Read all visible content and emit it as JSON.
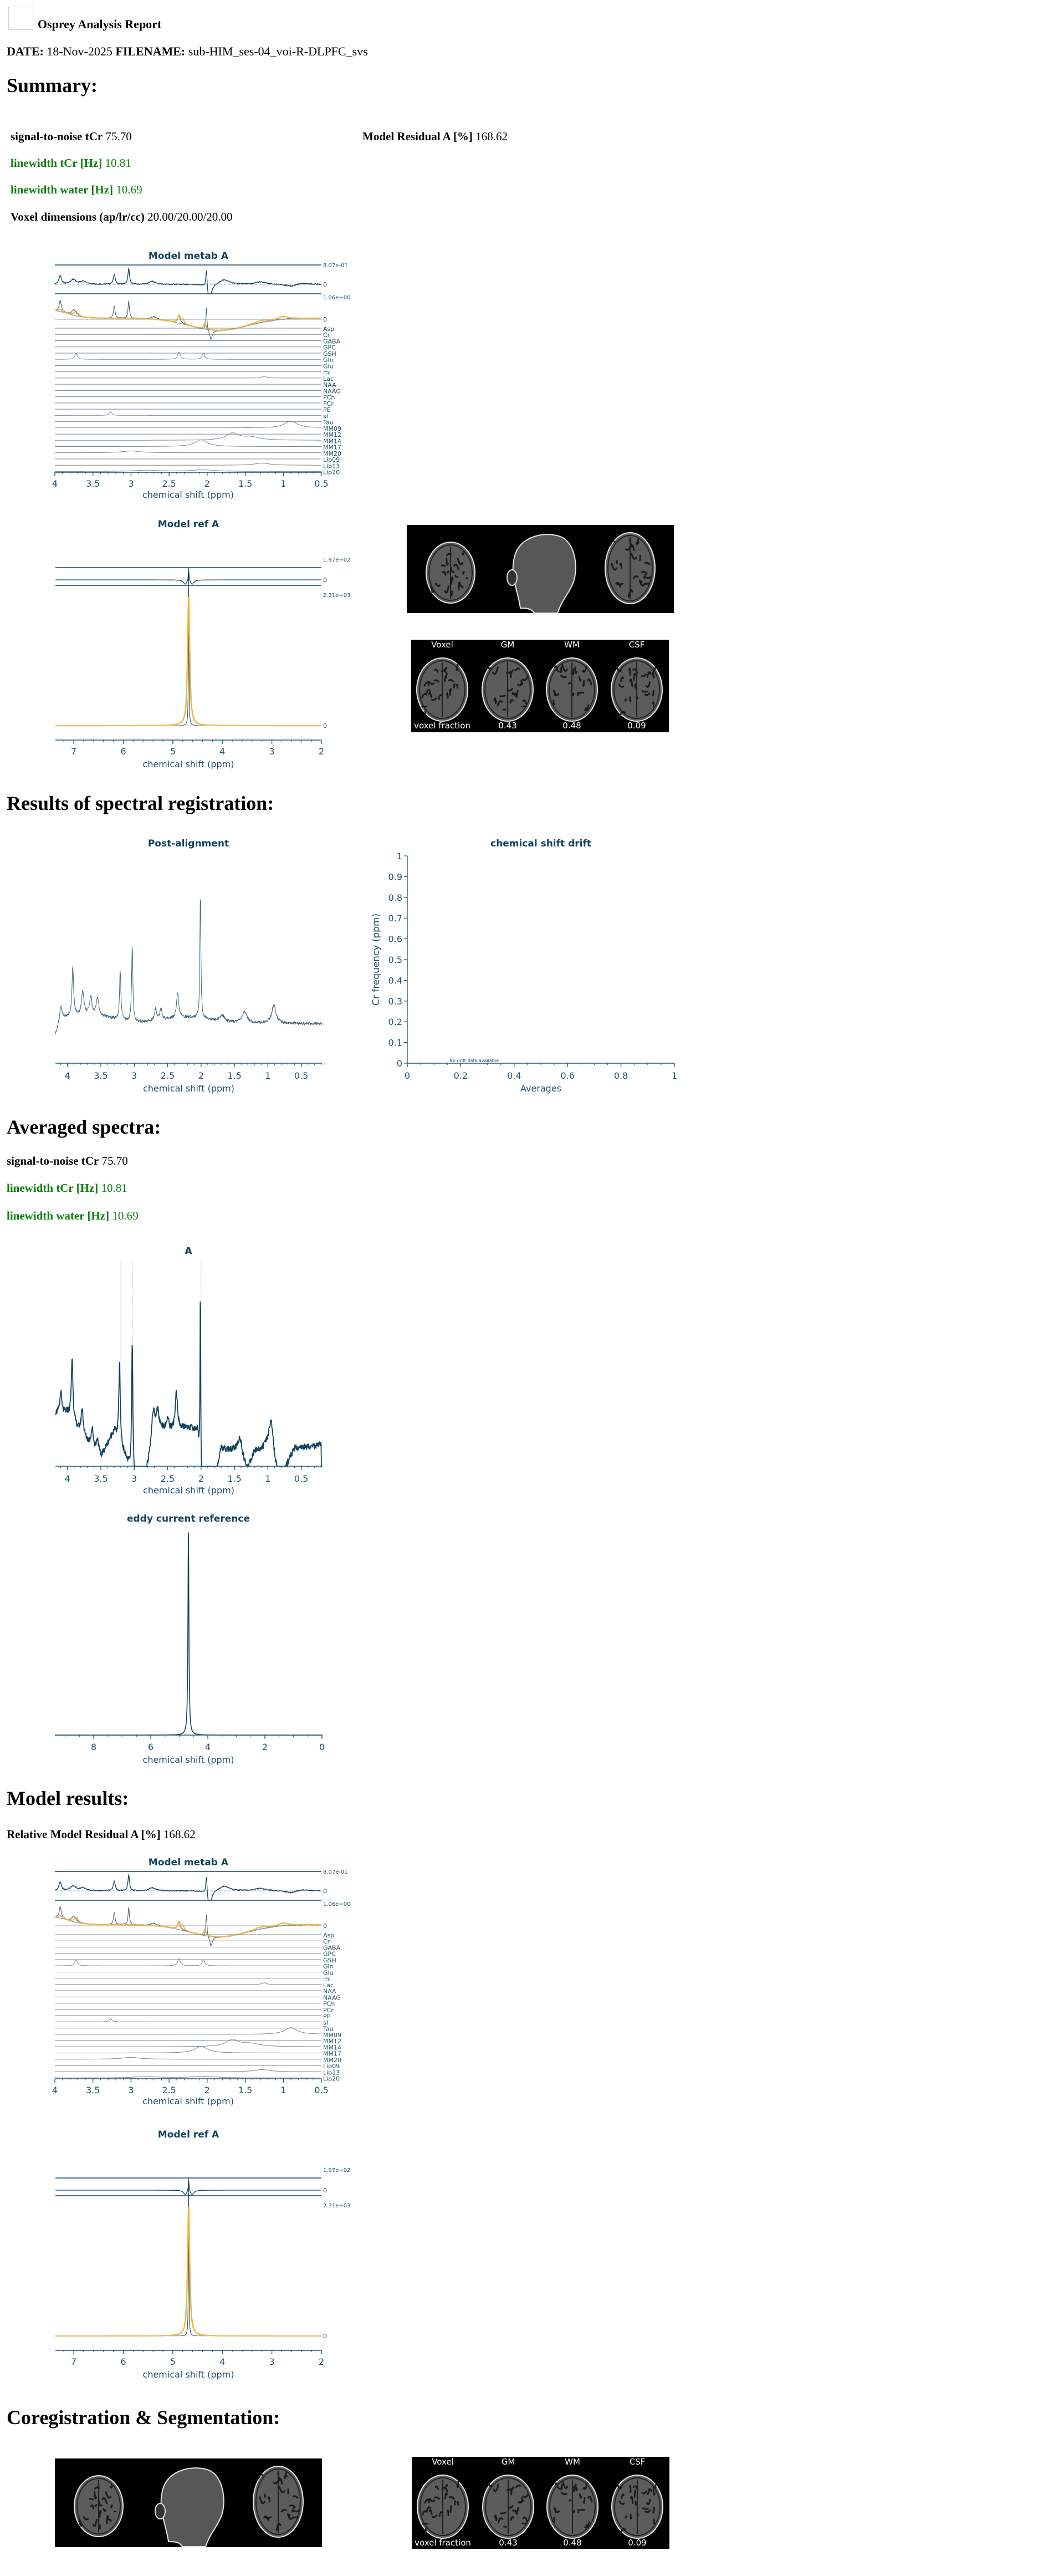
{
  "header": {
    "title": "Osprey Analysis Report",
    "date_label": "DATE:",
    "date": "18-Nov-2025",
    "filename_label": "FILENAME:",
    "filename": "sub-HIM_ses-04_voi-R-DLPFC_svs"
  },
  "summary": {
    "heading": "Summary:",
    "snr_label": "signal-to-noise tCr",
    "snr": "75.70",
    "residual_label": "Model Residual A [%]",
    "residual": "168.62",
    "lw_tcr_label": "linewidth tCr [Hz]",
    "lw_tcr": "10.81",
    "lw_water_label": "linewidth water [Hz]",
    "lw_water": "10.69",
    "voxel_label": "Voxel dimensions (ap/lr/cc)",
    "voxel": "20.00/20.00/20.00"
  },
  "registration": {
    "heading": "Results of spectral registration:"
  },
  "averaged": {
    "heading": "Averaged spectra:",
    "snr_label": "signal-to-noise tCr",
    "snr": "75.70",
    "lw_tcr_label": "linewidth tCr [Hz]",
    "lw_tcr": "10.81",
    "lw_water_label": "linewidth water [Hz]",
    "lw_water": "10.69"
  },
  "model_results": {
    "heading": "Model results:",
    "residual_label": "Relative Model Residual A [%]",
    "residual": "168.62"
  },
  "coreg": {
    "heading": "Coregistration & Segmentation:"
  },
  "segmentation": {
    "columns": [
      "Voxel",
      "GM",
      "WM",
      "CSF"
    ],
    "fraction_label": "voxel fraction",
    "fractions": [
      "0.43",
      "0.48",
      "0.09"
    ]
  },
  "colors": {
    "axis": "#1f4e6e",
    "data": "#11425d",
    "fit": "#f2b53a",
    "baseline": "#8a97a5",
    "green": "#0a800a"
  },
  "chart_data": [
    {
      "type": "line",
      "title": "Model metab A",
      "xlabel": "chemical shift (ppm)",
      "xlim": [
        4,
        0.5
      ],
      "xticks": [
        4,
        3.5,
        3,
        2.5,
        2,
        1.5,
        1,
        0.5
      ],
      "residual_max_label": "8.07e-01",
      "residual_zero_label": "0",
      "fit_max_label": "1.06e+00",
      "fit_zero_label": "0",
      "residual_peaks": [
        [
          3.93,
          0.45,
          0.02
        ],
        [
          3.76,
          0.25,
          0.04
        ],
        [
          3.63,
          0.15,
          0.05
        ],
        [
          3.22,
          0.5,
          0.015
        ],
        [
          3.03,
          0.85,
          0.012
        ],
        [
          2.72,
          0.15,
          0.05
        ],
        [
          2.01,
          1.0,
          0.01
        ],
        [
          1.97,
          -0.9,
          0.03
        ],
        [
          1.78,
          0.25,
          0.08
        ],
        [
          1.3,
          0.12,
          0.1
        ],
        [
          0.9,
          -0.12,
          0.08
        ],
        [
          0.75,
          0.07,
          0.1
        ]
      ],
      "data_peaks": [
        [
          3.93,
          0.5,
          0.015
        ],
        [
          3.75,
          0.25,
          0.03
        ],
        [
          3.22,
          0.55,
          0.012
        ],
        [
          3.03,
          0.8,
          0.01
        ],
        [
          2.7,
          0.12,
          0.04
        ],
        [
          2.37,
          0.3,
          0.02
        ],
        [
          2.01,
          1.0,
          0.008
        ],
        [
          1.95,
          -0.45,
          0.02
        ]
      ],
      "fit_peaks": [
        [
          3.72,
          0.22,
          0.03
        ],
        [
          3.93,
          0.1,
          0.03
        ],
        [
          2.37,
          0.35,
          0.02
        ],
        [
          2.32,
          0.2,
          0.02
        ],
        [
          2.03,
          0.3,
          0.015
        ],
        [
          1.0,
          0.12,
          0.07
        ],
        [
          1.3,
          0.08,
          0.1
        ]
      ],
      "components": [
        {
          "name": "Asp",
          "peaks": []
        },
        {
          "name": "Cr",
          "peaks": []
        },
        {
          "name": "GABA",
          "peaks": []
        },
        {
          "name": "GPC",
          "peaks": []
        },
        {
          "name": "GSH",
          "peaks": []
        },
        {
          "name": "Gln",
          "peaks": [
            [
              3.72,
              1,
              0.02
            ],
            [
              2.37,
              1.2,
              0.02
            ],
            [
              2.05,
              1,
              0.02
            ]
          ]
        },
        {
          "name": "Glu",
          "peaks": []
        },
        {
          "name": "mI",
          "peaks": []
        },
        {
          "name": "Lac",
          "peaks": [
            [
              1.25,
              0.3,
              0.03
            ]
          ]
        },
        {
          "name": "NAA",
          "peaks": []
        },
        {
          "name": "NAAG",
          "peaks": []
        },
        {
          "name": "PCh",
          "peaks": []
        },
        {
          "name": "PCr",
          "peaks": []
        },
        {
          "name": "PE",
          "peaks": []
        },
        {
          "name": "sI",
          "peaks": [
            [
              3.27,
              0.6,
              0.02
            ]
          ]
        },
        {
          "name": "Tau",
          "peaks": []
        },
        {
          "name": "MM09",
          "peaks": [
            [
              0.9,
              1.1,
              0.1
            ]
          ]
        },
        {
          "name": "MM12",
          "peaks": []
        },
        {
          "name": "MM14",
          "peaks": [
            [
              1.67,
              1.1,
              0.1
            ],
            [
              1.43,
              0.5,
              0.15
            ]
          ]
        },
        {
          "name": "MM17",
          "peaks": [
            [
              2.08,
              1.1,
              0.1
            ]
          ]
        },
        {
          "name": "MM20",
          "peaks": [
            [
              3.0,
              0.3,
              0.15
            ]
          ]
        },
        {
          "name": "Lip09",
          "peaks": []
        },
        {
          "name": "Lip13",
          "peaks": [
            [
              1.28,
              0.35,
              0.12
            ]
          ]
        },
        {
          "name": "Lip20",
          "peaks": [
            [
              2.05,
              0.25,
              0.2
            ],
            [
              2.8,
              0.2,
              0.2
            ]
          ]
        }
      ]
    },
    {
      "type": "line",
      "title": "Model ref A",
      "xlabel": "chemical shift (ppm)",
      "xlim": [
        7.37,
        2
      ],
      "xticks": [
        7,
        6,
        5,
        4,
        3,
        2
      ],
      "residual_max_label": "1.97e+02",
      "residual_zero_label": "0",
      "fit_max_label": "2.31e+03",
      "fit_zero_label": "0",
      "peak_ppm": 4.68
    },
    {
      "type": "line",
      "title": "Post-alignment",
      "xlabel": "chemical shift (ppm)",
      "xlim": [
        4.18,
        0.19
      ],
      "xticks": [
        4,
        3.5,
        3,
        2.5,
        2,
        1.5,
        1,
        0.5
      ],
      "peaks": [
        [
          4.1,
          0.08,
          0.02
        ],
        [
          3.92,
          0.32,
          0.015
        ],
        [
          3.77,
          0.16,
          0.02
        ],
        [
          3.65,
          0.12,
          0.02
        ],
        [
          3.55,
          0.12,
          0.02
        ],
        [
          3.21,
          0.33,
          0.012
        ],
        [
          3.03,
          0.5,
          0.011
        ],
        [
          2.68,
          0.08,
          0.02
        ],
        [
          2.6,
          0.08,
          0.02
        ],
        [
          2.35,
          0.16,
          0.02
        ],
        [
          2.01,
          0.83,
          0.009
        ],
        [
          1.68,
          0.04,
          0.04
        ],
        [
          1.35,
          0.07,
          0.05
        ],
        [
          0.91,
          0.12,
          0.04
        ]
      ]
    },
    {
      "type": "scatter",
      "title": "chemical shift drift",
      "xlabel": "Averages",
      "ylabel": "Cr frequency (ppm)",
      "xlim": [
        0,
        1
      ],
      "ylim": [
        0,
        1
      ],
      "xticks": [
        0,
        0.2,
        0.4,
        0.6,
        0.8,
        1
      ],
      "yticks": [
        0,
        0.1,
        0.2,
        0.3,
        0.4,
        0.5,
        0.6,
        0.7,
        0.8,
        0.9,
        1
      ],
      "annotation": "No drift data available",
      "points": []
    },
    {
      "type": "line",
      "title": "A",
      "xlabel": "chemical shift (ppm)",
      "xlim": [
        4.18,
        0.19
      ],
      "xticks": [
        4,
        3.5,
        3,
        2.5,
        2,
        1.5,
        1,
        0.5
      ],
      "reference_lines": [
        3.2,
        3.03,
        2.0
      ],
      "peaks": [
        [
          4.1,
          0.12,
          0.015
        ],
        [
          3.93,
          0.35,
          0.015
        ],
        [
          3.78,
          0.15,
          0.02
        ],
        [
          3.63,
          0.1,
          0.02
        ],
        [
          3.55,
          0.08,
          0.02
        ],
        [
          3.22,
          0.45,
          0.013
        ],
        [
          3.03,
          0.75,
          0.011
        ],
        [
          2.72,
          0.1,
          0.02
        ],
        [
          2.65,
          0.08,
          0.02
        ],
        [
          2.5,
          0.07,
          0.02
        ],
        [
          2.37,
          0.2,
          0.02
        ],
        [
          2.01,
          1.05,
          0.006
        ],
        [
          1.42,
          0.12,
          0.04
        ],
        [
          0.95,
          0.2,
          0.04
        ]
      ],
      "baseline": [
        [
          4.2,
          0.3
        ],
        [
          4.0,
          0.3
        ],
        [
          3.8,
          0.18
        ],
        [
          3.5,
          0.05
        ],
        [
          3.3,
          0.2
        ],
        [
          3.1,
          0.02
        ],
        [
          2.95,
          -0.15
        ],
        [
          2.85,
          -0.1
        ],
        [
          2.7,
          0.25
        ],
        [
          2.5,
          0.2
        ],
        [
          2.2,
          0.22
        ],
        [
          2.05,
          0.2
        ],
        [
          1.98,
          -0.2
        ],
        [
          1.78,
          -0.05
        ],
        [
          1.7,
          0.1
        ],
        [
          1.5,
          0.08
        ],
        [
          1.3,
          -0.02
        ],
        [
          1.2,
          0.08
        ],
        [
          1.0,
          0.1
        ],
        [
          0.85,
          -0.05
        ],
        [
          0.75,
          -0.02
        ],
        [
          0.6,
          0.1
        ],
        [
          0.2,
          0.12
        ]
      ]
    },
    {
      "type": "line",
      "title": "eddy current reference",
      "xlabel": "chemical shift (ppm)",
      "xlim": [
        9.36,
        0
      ],
      "xticks": [
        8,
        6,
        4,
        2,
        0
      ],
      "peak_ppm": 4.68
    }
  ]
}
